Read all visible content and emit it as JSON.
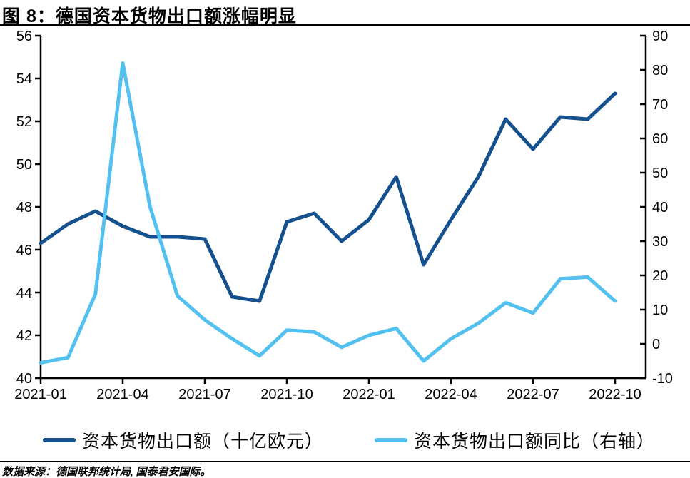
{
  "header": {
    "title": "图 8：德国资本货物出口额涨幅明显"
  },
  "footer": {
    "source": "数据来源：德国联邦统计局, 国泰君安国际。"
  },
  "legend": {
    "items": [
      {
        "label": "资本货物出口额（十亿欧元）",
        "color": "#15508F"
      },
      {
        "label": "资本货物出口额同比（右轴）",
        "color": "#53C1EF"
      }
    ]
  },
  "chart_data": {
    "type": "line",
    "title": "图 8：德国资本货物出口额涨幅明显",
    "x": [
      "2021-01",
      "2021-02",
      "2021-03",
      "2021-04",
      "2021-05",
      "2021-06",
      "2021-07",
      "2021-08",
      "2021-09",
      "2021-10",
      "2021-11",
      "2021-12",
      "2022-01",
      "2022-02",
      "2022-03",
      "2022-04",
      "2022-05",
      "2022-06",
      "2022-07",
      "2022-08",
      "2022-09",
      "2022-10"
    ],
    "x_tick_every": 3,
    "x_tick_labels": [
      "2021-01",
      "2021-04",
      "2021-07",
      "2021-10",
      "2022-01",
      "2022-04",
      "2022-07",
      "2022-10"
    ],
    "series": [
      {
        "name": "资本货物出口额（十亿欧元）",
        "axis": "left",
        "color": "#15508F",
        "values": [
          46.3,
          47.2,
          47.8,
          47.1,
          46.6,
          46.6,
          46.5,
          43.8,
          43.6,
          47.3,
          47.7,
          46.4,
          47.4,
          49.4,
          45.3,
          47.4,
          49.4,
          52.1,
          50.7,
          52.2,
          52.1,
          53.3
        ]
      },
      {
        "name": "资本货物出口额同比（右轴）",
        "axis": "right",
        "color": "#53C1EF",
        "values": [
          -5.5,
          -4,
          14.5,
          82,
          40,
          14,
          7,
          1.5,
          -3.5,
          4,
          3.5,
          -1,
          2.5,
          4.5,
          -5,
          1.5,
          6,
          12,
          9,
          19,
          19.5,
          12.5
        ]
      }
    ],
    "left_axis": {
      "min": 40,
      "max": 56,
      "ticks": [
        40,
        42,
        44,
        46,
        48,
        50,
        52,
        54,
        56
      ]
    },
    "right_axis": {
      "min": -10,
      "max": 90,
      "ticks": [
        -10,
        0,
        10,
        20,
        30,
        40,
        50,
        60,
        70,
        80,
        90
      ]
    },
    "grid": false,
    "legend_position": "bottom",
    "axis_color": "#000000"
  }
}
